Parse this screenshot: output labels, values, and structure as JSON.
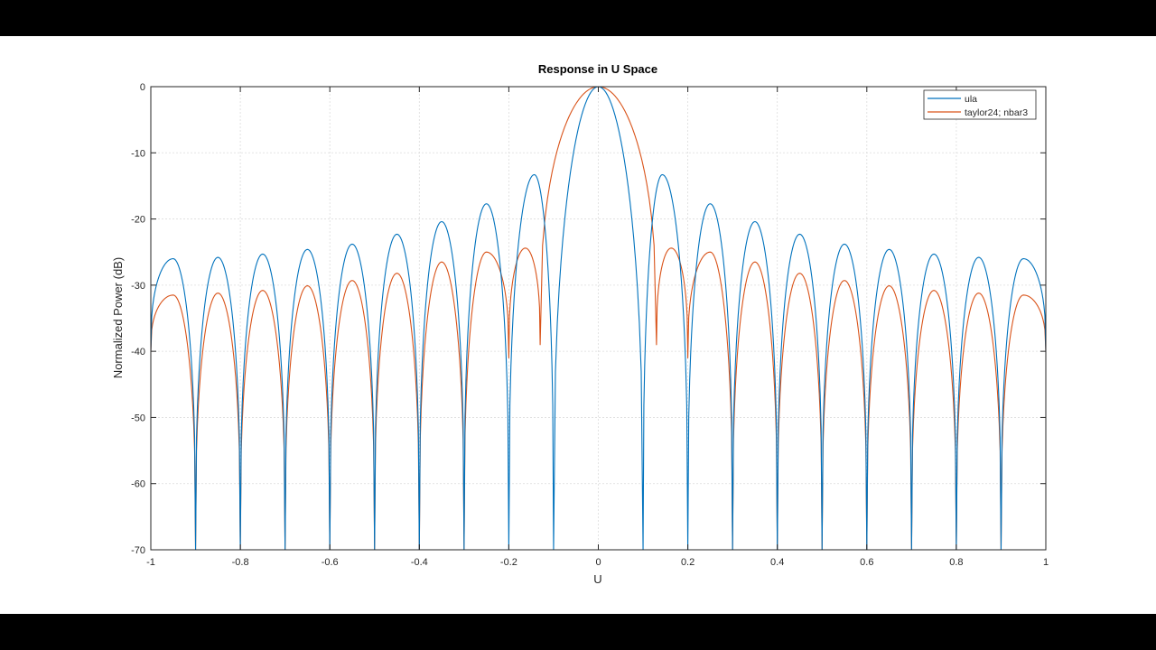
{
  "chart_data": {
    "type": "line",
    "title": "Response in U Space",
    "xlabel": "U",
    "ylabel": "Normalized Power (dB)",
    "xlim": [
      -1,
      1
    ],
    "ylim": [
      -70,
      0
    ],
    "xticks": [
      -1,
      -0.8,
      -0.6,
      -0.4,
      -0.2,
      0,
      0.2,
      0.4,
      0.6,
      0.8,
      1
    ],
    "yticks": [
      0,
      -10,
      -20,
      -30,
      -40,
      -50,
      -60,
      -70
    ],
    "xtick_labels": [
      "-1",
      "-0.8",
      "-0.6",
      "-0.4",
      "-0.2",
      "0",
      "0.2",
      "0.4",
      "0.6",
      "0.8",
      "1"
    ],
    "ytick_labels": [
      "0",
      "-10",
      "-20",
      "-30",
      "-40",
      "-50",
      "-60",
      "-70"
    ],
    "grid": true,
    "legend_position": "top-right",
    "series": [
      {
        "name": "ula",
        "color": "#0072BD",
        "x": [
          -1,
          -0.95,
          -0.9,
          -0.85,
          -0.8,
          -0.75,
          -0.7,
          -0.65,
          -0.6,
          -0.55,
          -0.5,
          -0.45,
          -0.4,
          -0.35,
          -0.3,
          -0.25,
          -0.2,
          -0.143,
          -0.1,
          0,
          0.1,
          0.143,
          0.2,
          0.25,
          0.3,
          0.35,
          0.4,
          0.45,
          0.5,
          0.55,
          0.6,
          0.65,
          0.7,
          0.75,
          0.8,
          0.85,
          0.9,
          0.95,
          1
        ],
        "y": [
          -40,
          -26,
          -70,
          -25.8,
          -70,
          -25.3,
          -70,
          -24.6,
          -70,
          -23.8,
          -70,
          -22.3,
          -70,
          -20.4,
          -70,
          -17.7,
          -70,
          -13.3,
          -70,
          0,
          -70,
          -13.3,
          -70,
          -17.7,
          -70,
          -20.4,
          -70,
          -22.3,
          -70,
          -23.8,
          -70,
          -24.6,
          -70,
          -25.3,
          -70,
          -25.8,
          -70,
          -26,
          -40
        ]
      },
      {
        "name": "taylor24; nbar3",
        "color": "#D95319",
        "x": [
          -1,
          -0.95,
          -0.9,
          -0.85,
          -0.8,
          -0.75,
          -0.7,
          -0.65,
          -0.6,
          -0.55,
          -0.5,
          -0.45,
          -0.4,
          -0.35,
          -0.3,
          -0.25,
          -0.2,
          -0.163,
          -0.13,
          0,
          0.13,
          0.163,
          0.2,
          0.25,
          0.3,
          0.35,
          0.4,
          0.45,
          0.5,
          0.55,
          0.6,
          0.65,
          0.7,
          0.75,
          0.8,
          0.85,
          0.9,
          0.95,
          1
        ],
        "y": [
          -40,
          -31.5,
          -70,
          -31.2,
          -70,
          -30.8,
          -70,
          -30.1,
          -70,
          -29.3,
          -70,
          -28.2,
          -70,
          -26.5,
          -70,
          -25,
          -41,
          -24.4,
          -39,
          0,
          -39,
          -24.4,
          -41,
          -25,
          -70,
          -26.5,
          -70,
          -28.2,
          -70,
          -29.3,
          -70,
          -30.1,
          -70,
          -30.8,
          -70,
          -31.2,
          -70,
          -31.5,
          -40
        ]
      }
    ]
  }
}
